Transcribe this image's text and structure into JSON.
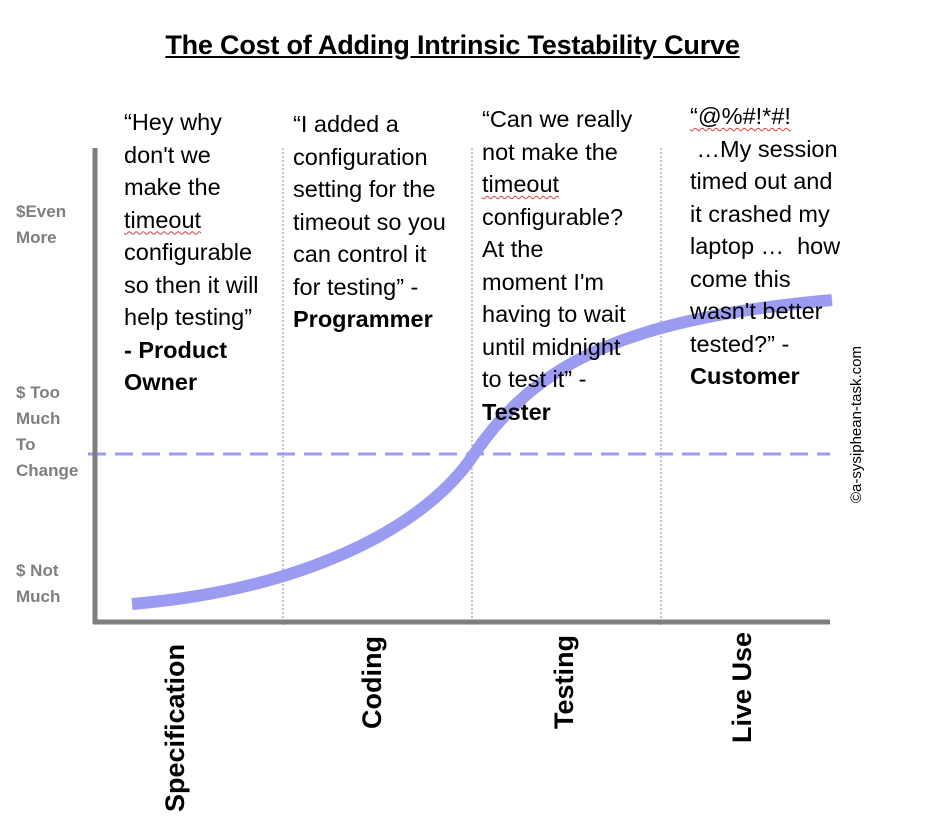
{
  "title": "The Cost of Adding Intrinsic Testability Curve",
  "y_axis_labels": [
    {
      "lines": [
        "$Even",
        "More"
      ]
    },
    {
      "lines": [
        "$ Too",
        "Much",
        "To",
        "Change"
      ]
    },
    {
      "lines": [
        "$ Not",
        "Much"
      ]
    }
  ],
  "phases": [
    "Specification",
    "Coding",
    "Testing",
    "Live Use"
  ],
  "quotes": [
    {
      "text_lines": [
        "“Hey why",
        "don't we",
        "make the",
        "timeout",
        "configurable",
        "so then it will",
        "help testing”"
      ],
      "attribution_lines": [
        "- Product",
        "Owner"
      ]
    },
    {
      "text_lines": [
        "“I added a",
        "configuration",
        "setting for the",
        "timeout so you",
        "can control it",
        "for testing” -"
      ],
      "attribution_lines": [
        "Programmer"
      ]
    },
    {
      "text_lines": [
        "“Can we really",
        "not make the",
        "timeout",
        "configurable?",
        "At the",
        "moment I'm",
        "having to wait",
        "until midnight",
        "to test it” -"
      ],
      "attribution_lines": [
        "Tester"
      ]
    },
    {
      "text_lines": [
        "“@%#!*#!",
        " …My session",
        "timed out and",
        "it crashed my",
        "laptop …  how",
        "come this",
        "wasn't better",
        "tested?” -"
      ],
      "attribution_lines": [
        "Customer"
      ]
    }
  ],
  "copyright": "©a-sysiphean-task.com",
  "colors": {
    "curve": "#9b9bf2",
    "threshold_line": "#9b9bf2",
    "axis": "#7f7f7f",
    "y_labels": "#7f7f7f",
    "phase_dividers": "#888888"
  }
}
